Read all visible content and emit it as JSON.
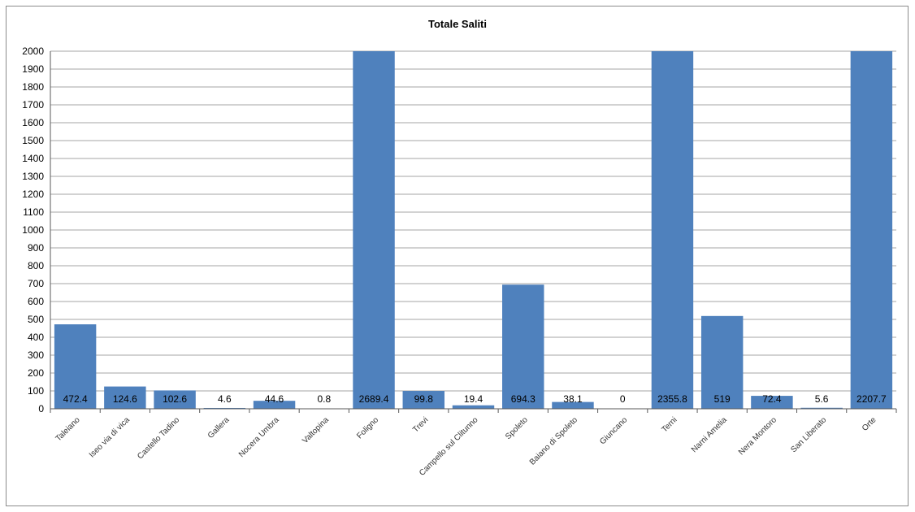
{
  "chart_data": {
    "type": "bar",
    "title": "Totale Saliti",
    "xlabel": "",
    "ylabel": "",
    "ylim": [
      0,
      2000
    ],
    "yticks": [
      0,
      100,
      200,
      300,
      400,
      500,
      600,
      700,
      800,
      900,
      1000,
      1100,
      1200,
      1300,
      1400,
      1500,
      1600,
      1700,
      1800,
      1900,
      2000
    ],
    "grid": true,
    "legend": "none",
    "colors": {
      "bar": "#4f81bd",
      "grid": "#a6a6a6",
      "axis": "#595959"
    },
    "categories": [
      "Taleiano",
      "Iseo via di vica",
      "Castello Tadino",
      "Gallera",
      "Nocera Umbra",
      "Valtopina",
      "Foligno",
      "Trevi",
      "Campello sul Clitunno",
      "Spoleto",
      "Baiano di Spoleto",
      "Giuncano",
      "Terni",
      "Narni Amelia",
      "Nera Montoro",
      "San Liberato",
      "Orte"
    ],
    "values": [
      472.4,
      124.6,
      102.6,
      4.6,
      44.6,
      0.8,
      2689.4,
      99.8,
      19.4,
      694.3,
      38.1,
      0,
      2355.8,
      519,
      72.4,
      5.6,
      2207.7
    ],
    "data_labels": [
      "472.4",
      "124.6",
      "102.6",
      "4.6",
      "44.6",
      "0.8",
      "2689.4",
      "99.8",
      "19.4",
      "694.3",
      "38.1",
      "0",
      "2355.8",
      "519",
      "72.4",
      "5.6",
      "2207.7"
    ]
  }
}
